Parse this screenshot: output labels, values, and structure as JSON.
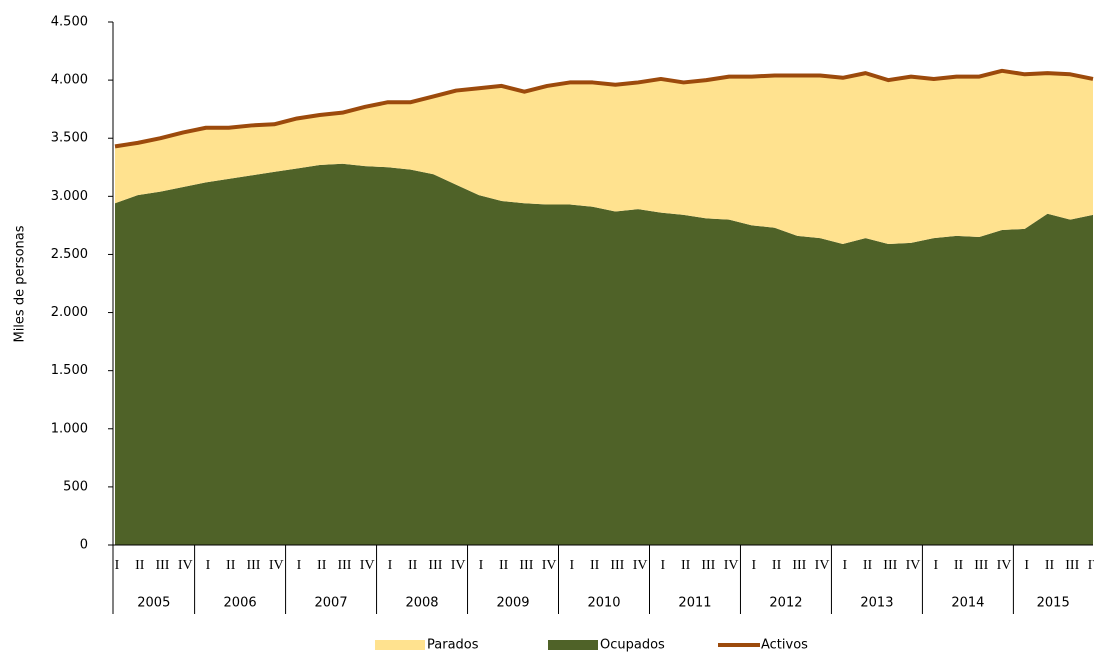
{
  "chart_data": {
    "type": "area",
    "y_label": "Miles de personas",
    "categories": [
      "I",
      "II",
      "III",
      "IV",
      "I",
      "II",
      "III",
      "IV",
      "I",
      "II",
      "III",
      "IV",
      "I",
      "II",
      "III",
      "IV",
      "I",
      "II",
      "III",
      "IV",
      "I",
      "II",
      "III",
      "IV",
      "I",
      "II",
      "III",
      "IV",
      "I",
      "II",
      "III",
      "IV",
      "I",
      "II",
      "III",
      "IV",
      "I",
      "II",
      "III",
      "IV",
      "I",
      "II",
      "III",
      "IV"
    ],
    "years": [
      "2005",
      "2006",
      "2007",
      "2008",
      "2009",
      "2010",
      "2011",
      "2012",
      "2013",
      "2014",
      "2015"
    ],
    "stacked": true,
    "series": [
      {
        "name": "Parados",
        "kind": "area",
        "color": "#ffe28f",
        "values": [
          490,
          450,
          460,
          470,
          470,
          440,
          430,
          410,
          430,
          430,
          440,
          510,
          560,
          580,
          670,
          810,
          920,
          990,
          960,
          1020,
          1050,
          1070,
          1090,
          1090,
          1150,
          1140,
          1190,
          1230,
          1280,
          1310,
          1380,
          1400,
          1430,
          1420,
          1410,
          1430,
          1370,
          1370,
          1380,
          1370,
          1330,
          1210,
          1250,
          1170
        ]
      },
      {
        "name": "Ocupados",
        "kind": "area",
        "color": "#4f6228",
        "values": [
          2940,
          3010,
          3040,
          3080,
          3120,
          3150,
          3180,
          3210,
          3240,
          3270,
          3280,
          3260,
          3250,
          3230,
          3190,
          3100,
          3010,
          2960,
          2940,
          2930,
          2930,
          2910,
          2870,
          2890,
          2860,
          2840,
          2810,
          2800,
          2750,
          2730,
          2660,
          2640,
          2590,
          2640,
          2590,
          2600,
          2640,
          2660,
          2650,
          2710,
          2720,
          2850,
          2800,
          2840
        ]
      },
      {
        "name": "Activos",
        "kind": "line",
        "color": "#9c4a0c",
        "values": [
          3430,
          3460,
          3500,
          3550,
          3590,
          3590,
          3610,
          3620,
          3670,
          3700,
          3720,
          3770,
          3810,
          3810,
          3860,
          3910,
          3930,
          3950,
          3900,
          3950,
          3980,
          3980,
          3960,
          3980,
          4010,
          3980,
          4000,
          4030,
          4030,
          4040,
          4040,
          4040,
          4020,
          4060,
          4000,
          4030,
          4010,
          4030,
          4030,
          4080,
          4050,
          4060,
          4050,
          4010
        ]
      }
    ],
    "ylim": [
      0,
      4500
    ],
    "yticks": [
      0,
      500,
      {
        "value": 1000,
        "label": "1.000"
      },
      {
        "value": 1500,
        "label": "1.500"
      },
      {
        "value": 2000,
        "label": "2.000"
      },
      {
        "value": 2500,
        "label": "2.500"
      },
      {
        "value": 3000,
        "label": "3.000"
      },
      {
        "value": 3500,
        "label": "3.500"
      },
      {
        "value": 4000,
        "label": "4.000"
      },
      {
        "value": 4500,
        "label": "4.500"
      }
    ],
    "legend": "bottom"
  }
}
